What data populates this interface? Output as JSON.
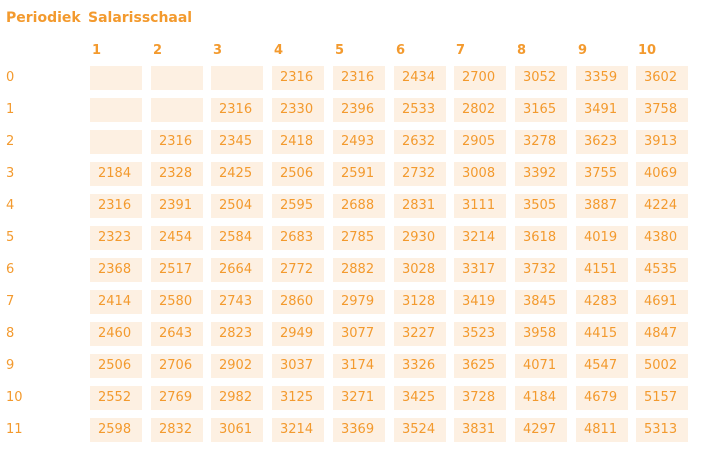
{
  "header": {
    "periodiek_label": "Periodiek",
    "salarisschaal_label": "Salarisschaal"
  },
  "scales": [
    "1",
    "2",
    "3",
    "4",
    "5",
    "6",
    "7",
    "8",
    "9",
    "10"
  ],
  "rows": [
    {
      "periodiek": "0",
      "values": [
        "",
        "",
        "",
        "2316",
        "2316",
        "2434",
        "2700",
        "3052",
        "3359",
        "3602"
      ]
    },
    {
      "periodiek": "1",
      "values": [
        "",
        "",
        "2316",
        "2330",
        "2396",
        "2533",
        "2802",
        "3165",
        "3491",
        "3758"
      ]
    },
    {
      "periodiek": "2",
      "values": [
        "",
        "2316",
        "2345",
        "2418",
        "2493",
        "2632",
        "2905",
        "3278",
        "3623",
        "3913"
      ]
    },
    {
      "periodiek": "3",
      "values": [
        "2184",
        "2328",
        "2425",
        "2506",
        "2591",
        "2732",
        "3008",
        "3392",
        "3755",
        "4069"
      ]
    },
    {
      "periodiek": "4",
      "values": [
        "2316",
        "2391",
        "2504",
        "2595",
        "2688",
        "2831",
        "3111",
        "3505",
        "3887",
        "4224"
      ]
    },
    {
      "periodiek": "5",
      "values": [
        "2323",
        "2454",
        "2584",
        "2683",
        "2785",
        "2930",
        "3214",
        "3618",
        "4019",
        "4380"
      ]
    },
    {
      "periodiek": "6",
      "values": [
        "2368",
        "2517",
        "2664",
        "2772",
        "2882",
        "3028",
        "3317",
        "3732",
        "4151",
        "4535"
      ]
    },
    {
      "periodiek": "7",
      "values": [
        "2414",
        "2580",
        "2743",
        "2860",
        "2979",
        "3128",
        "3419",
        "3845",
        "4283",
        "4691"
      ]
    },
    {
      "periodiek": "8",
      "values": [
        "2460",
        "2643",
        "2823",
        "2949",
        "3077",
        "3227",
        "3523",
        "3958",
        "4415",
        "4847"
      ]
    },
    {
      "periodiek": "9",
      "values": [
        "2506",
        "2706",
        "2902",
        "3037",
        "3174",
        "3326",
        "3625",
        "4071",
        "4547",
        "5002"
      ]
    },
    {
      "periodiek": "10",
      "values": [
        "2552",
        "2769",
        "2982",
        "3125",
        "3271",
        "3425",
        "3728",
        "4184",
        "4679",
        "5157"
      ]
    },
    {
      "periodiek": "11",
      "values": [
        "2598",
        "2832",
        "3061",
        "3214",
        "3369",
        "3524",
        "3831",
        "4297",
        "4811",
        "5313"
      ]
    }
  ],
  "colors": {
    "text": "#f39a2e",
    "cell_background": "#fdf0e2",
    "page_background": "#ffffff"
  }
}
